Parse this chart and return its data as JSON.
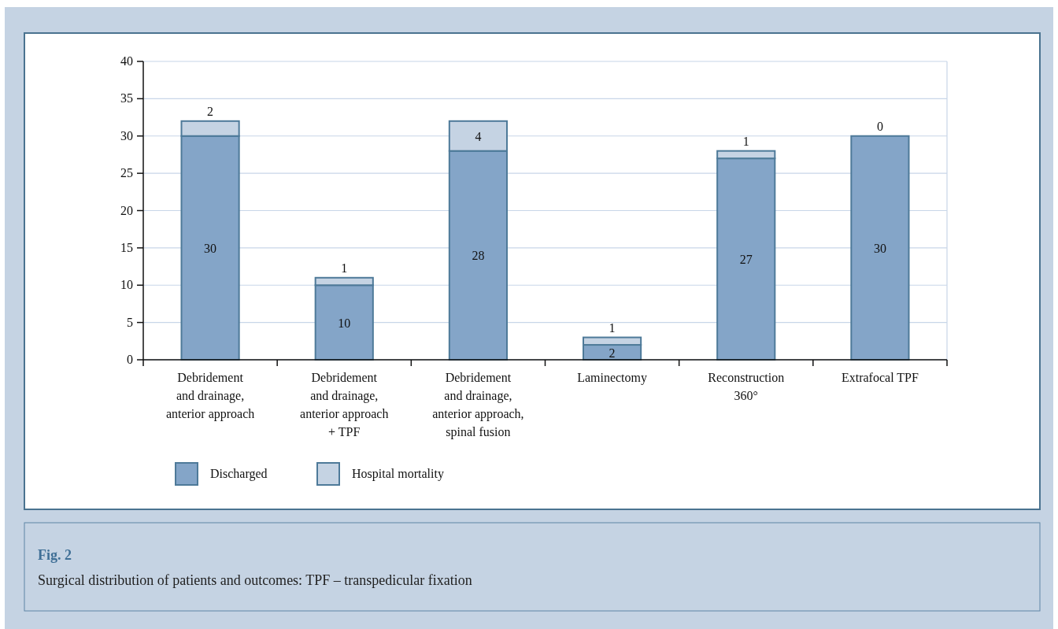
{
  "chart_data": {
    "type": "bar",
    "stacked": true,
    "title": "Fig. 2",
    "annotations": [
      "Surgical distribution of patients and outcomes: TPF – transpedicular fixation"
    ],
    "categories": [
      "Debridement\nand drainage,\nanterior approach",
      "Debridement\nand drainage,\nanterior approach\n+ TPF",
      "Debridement\nand drainage,\nanterior approach,\nspinal fusion",
      "Laminectomy",
      "Reconstruction\n360°",
      "Extrafocal TPF"
    ],
    "series": [
      {
        "name": "Discharged",
        "color": "#84a5c8",
        "values": [
          30,
          10,
          28,
          2,
          27,
          30
        ]
      },
      {
        "name": "Hospital mortality",
        "color": "#c5d3e3",
        "values": [
          2,
          1,
          4,
          1,
          1,
          0
        ]
      }
    ],
    "data_labels": true,
    "ylim": [
      0,
      40
    ],
    "yticks": [
      0,
      5,
      10,
      15,
      20,
      25,
      30,
      35,
      40
    ],
    "grid": "y",
    "legend": "bottom left"
  }
}
